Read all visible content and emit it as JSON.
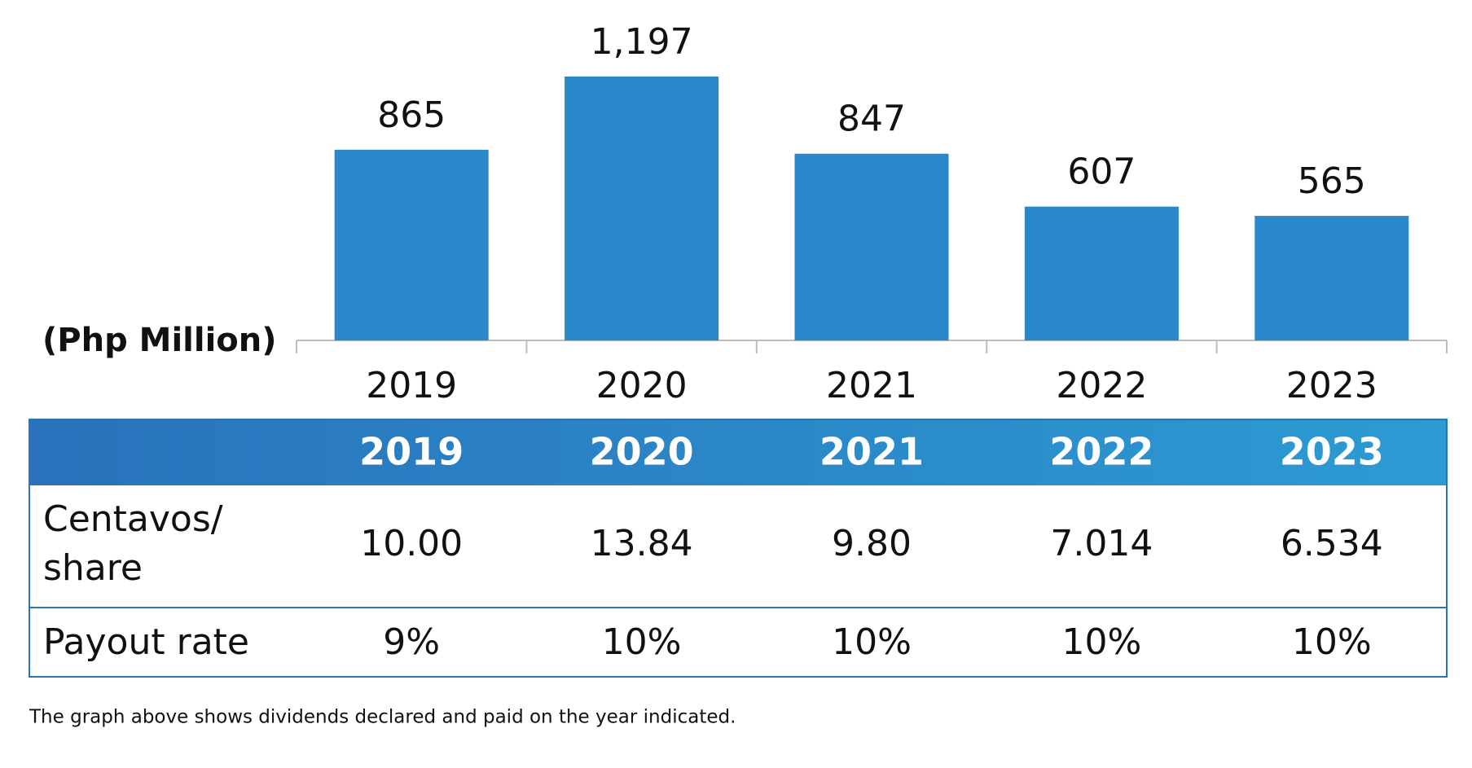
{
  "chart_data": {
    "type": "bar",
    "ylabel": "(Php Million)",
    "categories": [
      "2019",
      "2020",
      "2021",
      "2022",
      "2023"
    ],
    "values": [
      865,
      1197,
      847,
      607,
      565
    ],
    "value_labels": [
      "865",
      "1,197",
      "847",
      "607",
      "565"
    ],
    "color": "#2a87ca"
  },
  "table": {
    "header": [
      "2019",
      "2020",
      "2021",
      "2022",
      "2023"
    ],
    "rows": [
      [
        "Centavos/ share",
        "10.00",
        "13.84",
        "9.80",
        "7.014",
        "6.534"
      ],
      [
        "Payout rate",
        "9%",
        "10%",
        "10%",
        "10%",
        "10%"
      ]
    ]
  },
  "note": "The graph above shows dividends declared and paid on the year indicated."
}
